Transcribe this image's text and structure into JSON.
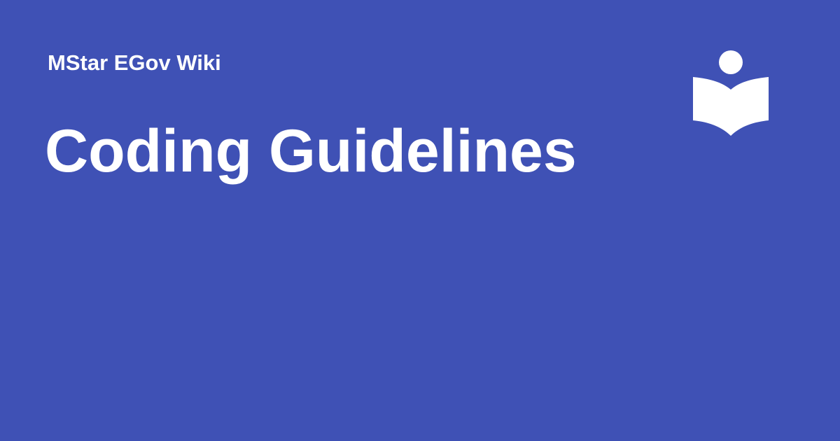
{
  "header": {
    "site_name": "MStar EGov Wiki",
    "page_title": "Coding Guidelines"
  },
  "logo": {
    "icon": "reader-book-icon"
  },
  "colors": {
    "background": "#3f51b5",
    "text": "#ffffff",
    "icon": "#ffffff"
  }
}
